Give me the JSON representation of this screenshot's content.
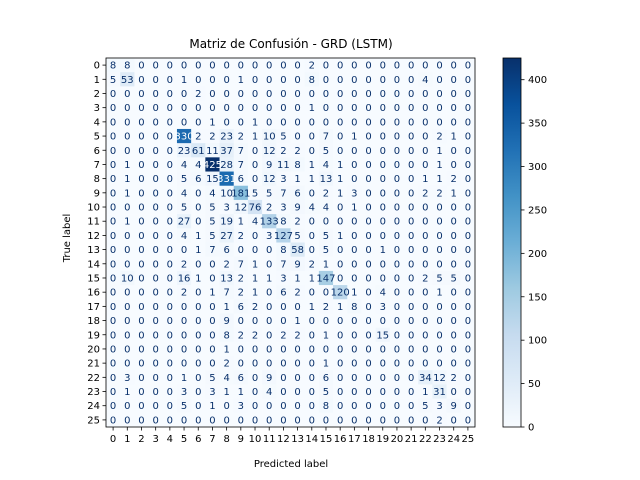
{
  "chart_data": {
    "type": "heatmap",
    "title": "Matriz de Confusión - GRD (LSTM)",
    "xlabel": "Predicted label",
    "ylabel": "True label",
    "labels": [
      "0",
      "1",
      "2",
      "3",
      "4",
      "5",
      "6",
      "7",
      "8",
      "9",
      "10",
      "11",
      "12",
      "13",
      "14",
      "15",
      "16",
      "17",
      "18",
      "19",
      "20",
      "21",
      "22",
      "23",
      "24",
      "25"
    ],
    "matrix": [
      [
        8,
        8,
        0,
        0,
        0,
        0,
        0,
        0,
        0,
        0,
        0,
        0,
        0,
        0,
        2,
        0,
        0,
        0,
        0,
        0,
        0,
        0,
        0,
        0,
        0,
        0
      ],
      [
        5,
        53,
        0,
        0,
        0,
        1,
        0,
        0,
        0,
        1,
        0,
        0,
        0,
        0,
        8,
        0,
        0,
        0,
        0,
        0,
        0,
        0,
        4,
        0,
        0,
        0
      ],
      [
        0,
        0,
        0,
        0,
        0,
        0,
        2,
        0,
        0,
        0,
        0,
        0,
        0,
        0,
        0,
        0,
        0,
        0,
        0,
        0,
        0,
        0,
        0,
        0,
        0,
        0
      ],
      [
        0,
        0,
        0,
        0,
        0,
        0,
        0,
        0,
        0,
        0,
        0,
        0,
        0,
        0,
        1,
        0,
        0,
        0,
        0,
        0,
        0,
        0,
        0,
        0,
        0,
        0
      ],
      [
        0,
        0,
        0,
        0,
        0,
        0,
        0,
        1,
        0,
        0,
        1,
        0,
        0,
        0,
        0,
        0,
        0,
        0,
        0,
        0,
        0,
        0,
        0,
        0,
        0,
        0
      ],
      [
        0,
        0,
        0,
        0,
        0,
        330,
        2,
        2,
        23,
        2,
        1,
        10,
        5,
        0,
        0,
        7,
        0,
        1,
        0,
        0,
        0,
        0,
        0,
        2,
        1,
        0
      ],
      [
        0,
        0,
        0,
        0,
        0,
        23,
        61,
        11,
        37,
        7,
        0,
        12,
        2,
        2,
        0,
        5,
        0,
        0,
        0,
        0,
        0,
        0,
        0,
        1,
        0,
        0
      ],
      [
        0,
        1,
        0,
        0,
        0,
        4,
        4,
        425,
        28,
        7,
        0,
        9,
        11,
        8,
        1,
        4,
        1,
        0,
        0,
        0,
        0,
        0,
        0,
        1,
        0,
        0
      ],
      [
        0,
        1,
        0,
        0,
        0,
        5,
        6,
        15,
        331,
        6,
        0,
        12,
        3,
        1,
        1,
        13,
        1,
        0,
        0,
        0,
        0,
        0,
        1,
        1,
        2,
        0
      ],
      [
        0,
        1,
        0,
        0,
        0,
        4,
        0,
        4,
        10,
        181,
        5,
        5,
        7,
        6,
        0,
        2,
        1,
        3,
        0,
        0,
        0,
        0,
        2,
        2,
        1,
        0
      ],
      [
        0,
        0,
        0,
        0,
        0,
        5,
        0,
        5,
        3,
        12,
        76,
        2,
        3,
        9,
        4,
        4,
        0,
        1,
        0,
        0,
        0,
        0,
        0,
        0,
        0,
        0
      ],
      [
        0,
        1,
        0,
        0,
        0,
        27,
        0,
        5,
        19,
        1,
        4,
        133,
        8,
        2,
        0,
        0,
        0,
        0,
        0,
        0,
        0,
        0,
        0,
        0,
        0,
        0
      ],
      [
        0,
        0,
        0,
        0,
        0,
        4,
        1,
        5,
        27,
        2,
        0,
        3,
        127,
        5,
        0,
        5,
        1,
        0,
        0,
        0,
        0,
        0,
        0,
        0,
        0,
        0
      ],
      [
        0,
        0,
        0,
        0,
        0,
        0,
        1,
        7,
        6,
        0,
        0,
        0,
        8,
        58,
        0,
        5,
        0,
        0,
        0,
        1,
        0,
        0,
        0,
        0,
        0,
        0
      ],
      [
        0,
        0,
        0,
        0,
        0,
        2,
        0,
        0,
        2,
        7,
        1,
        0,
        7,
        9,
        2,
        1,
        0,
        0,
        0,
        0,
        0,
        0,
        0,
        0,
        0,
        0
      ],
      [
        0,
        10,
        0,
        0,
        0,
        16,
        1,
        0,
        13,
        2,
        1,
        1,
        3,
        1,
        1,
        147,
        0,
        0,
        0,
        0,
        0,
        0,
        2,
        5,
        5,
        0
      ],
      [
        0,
        0,
        0,
        0,
        0,
        2,
        0,
        1,
        7,
        2,
        1,
        0,
        6,
        2,
        0,
        0,
        120,
        1,
        0,
        4,
        0,
        0,
        0,
        1,
        0,
        0
      ],
      [
        0,
        0,
        0,
        0,
        0,
        0,
        0,
        0,
        1,
        6,
        2,
        0,
        0,
        0,
        1,
        2,
        1,
        8,
        0,
        3,
        0,
        0,
        0,
        0,
        0,
        0
      ],
      [
        0,
        0,
        0,
        0,
        0,
        0,
        0,
        0,
        9,
        0,
        0,
        0,
        0,
        1,
        0,
        0,
        0,
        0,
        0,
        0,
        0,
        0,
        0,
        0,
        0,
        0
      ],
      [
        0,
        0,
        0,
        0,
        0,
        0,
        0,
        0,
        8,
        2,
        2,
        0,
        2,
        2,
        0,
        1,
        0,
        0,
        0,
        15,
        0,
        0,
        0,
        0,
        0,
        0
      ],
      [
        0,
        0,
        0,
        0,
        0,
        0,
        0,
        0,
        1,
        0,
        0,
        0,
        0,
        0,
        0,
        0,
        0,
        0,
        0,
        0,
        0,
        0,
        0,
        0,
        0,
        0
      ],
      [
        0,
        0,
        0,
        0,
        0,
        0,
        0,
        0,
        2,
        0,
        0,
        0,
        0,
        0,
        0,
        1,
        0,
        0,
        0,
        0,
        0,
        0,
        0,
        0,
        0,
        0
      ],
      [
        0,
        3,
        0,
        0,
        0,
        1,
        0,
        5,
        4,
        6,
        0,
        9,
        0,
        0,
        0,
        6,
        0,
        0,
        0,
        0,
        0,
        0,
        34,
        12,
        2,
        0
      ],
      [
        0,
        1,
        0,
        0,
        0,
        3,
        0,
        3,
        1,
        1,
        0,
        4,
        0,
        0,
        0,
        5,
        0,
        0,
        0,
        0,
        0,
        0,
        1,
        31,
        0,
        0
      ],
      [
        0,
        0,
        0,
        0,
        0,
        5,
        0,
        1,
        0,
        3,
        0,
        0,
        0,
        0,
        0,
        8,
        0,
        0,
        0,
        0,
        0,
        0,
        5,
        3,
        9,
        0
      ],
      [
        0,
        0,
        0,
        0,
        0,
        0,
        0,
        0,
        0,
        0,
        0,
        0,
        0,
        0,
        0,
        0,
        0,
        0,
        0,
        0,
        0,
        0,
        0,
        2,
        0,
        0
      ]
    ],
    "colorbar": {
      "min": 0,
      "max": 425,
      "ticks": [
        0,
        50,
        100,
        150,
        200,
        250,
        300,
        350,
        400
      ]
    },
    "colormap": "Blues",
    "colors": {
      "low": "#f7fbff",
      "high": "#08306b",
      "text_dark": "#08306b",
      "text_light": "#ffffff"
    }
  }
}
